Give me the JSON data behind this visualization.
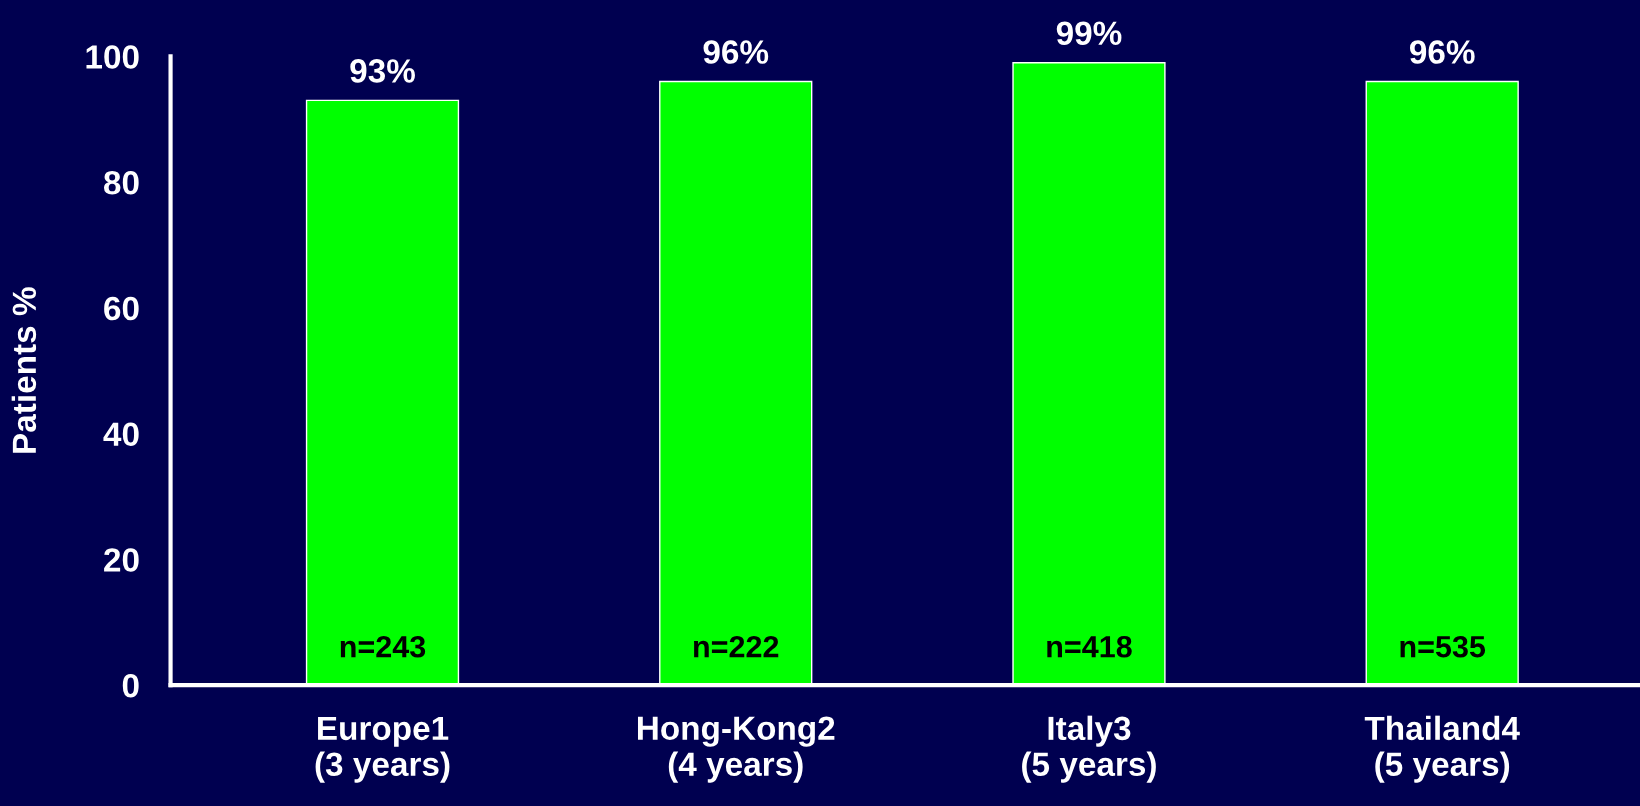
{
  "chart_data": {
    "type": "bar",
    "ylabel": "Patients %",
    "categories": [
      "Europe1\n(3 years)",
      "Hong-Kong2\n(4 years)",
      "Italy3\n(5 years)",
      "Thailand4\n(5 years)"
    ],
    "values": [
      93,
      96,
      99,
      96
    ],
    "color": "#00ff00",
    "value_labels": [
      "93%",
      "96%",
      "99%",
      "96%"
    ],
    "ylim": [
      0,
      100
    ],
    "yticks": [
      0,
      20,
      40,
      60,
      80,
      100
    ],
    "grid": false,
    "legend": false,
    "annotations": [
      "n=243",
      "n=222",
      "n=418",
      "n=535"
    ]
  }
}
